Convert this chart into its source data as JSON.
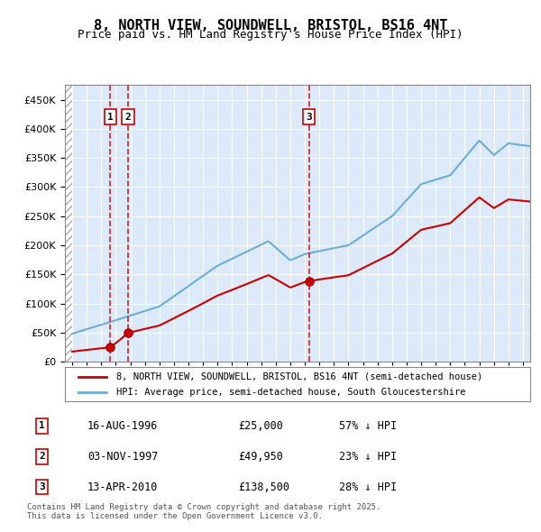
{
  "title": "8, NORTH VIEW, SOUNDWELL, BRISTOL, BS16 4NT",
  "subtitle": "Price paid vs. HM Land Registry's House Price Index (HPI)",
  "hpi_label": "HPI: Average price, semi-detached house, South Gloucestershire",
  "property_label": "8, NORTH VIEW, SOUNDWELL, BRISTOL, BS16 4NT (semi-detached house)",
  "legend_footnote": "Contains HM Land Registry data © Crown copyright and database right 2025.\nThis data is licensed under the Open Government Licence v3.0.",
  "transactions": [
    {
      "id": 1,
      "date": "16-AUG-1996",
      "year": 1996.62,
      "price": 25000,
      "note": "57% ↓ HPI"
    },
    {
      "id": 2,
      "date": "03-NOV-1997",
      "year": 1997.84,
      "price": 49950,
      "note": "23% ↓ HPI"
    },
    {
      "id": 3,
      "date": "13-APR-2010",
      "year": 2010.28,
      "price": 138500,
      "note": "28% ↓ HPI"
    }
  ],
  "ylim": [
    0,
    475000
  ],
  "xlim_min": 1993.5,
  "xlim_max": 2025.5,
  "yticks": [
    0,
    50000,
    100000,
    150000,
    200000,
    250000,
    300000,
    350000,
    400000,
    450000
  ],
  "ytick_labels": [
    "£0",
    "£50K",
    "£100K",
    "£150K",
    "£200K",
    "£250K",
    "£300K",
    "£350K",
    "£400K",
    "£450K"
  ],
  "background_color": "#dce9f8",
  "grid_color": "#ffffff",
  "hpi_color": "#6baed6",
  "price_color": "#cc0000",
  "transaction_marker_color": "#cc0000",
  "transaction_line_color": "#cc0000"
}
